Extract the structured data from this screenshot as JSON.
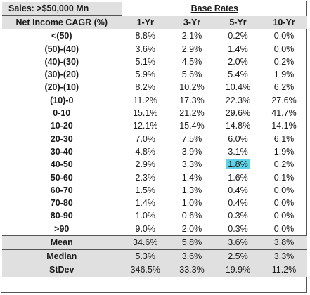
{
  "header": {
    "corner_label": "Sales: >$50,000 Mn",
    "base_rates_label": "Base Rates",
    "row_header": "Net Income CAGR (%)",
    "columns": [
      "1-Yr",
      "3-Yr",
      "5-Yr",
      "10-Yr"
    ]
  },
  "rows": [
    {
      "label": "<(50)",
      "values": [
        "8.8%",
        "2.1%",
        "0.2%",
        "0.0%"
      ]
    },
    {
      "label": "(50)-(40)",
      "values": [
        "3.6%",
        "2.9%",
        "1.4%",
        "0.0%"
      ]
    },
    {
      "label": "(40)-(30)",
      "values": [
        "5.1%",
        "4.5%",
        "2.0%",
        "0.2%"
      ]
    },
    {
      "label": "(30)-(20)",
      "values": [
        "5.9%",
        "5.6%",
        "5.4%",
        "1.9%"
      ]
    },
    {
      "label": "(20)-(10)",
      "values": [
        "8.2%",
        "10.2%",
        "10.4%",
        "6.2%"
      ]
    },
    {
      "label": "(10)-0",
      "values": [
        "11.2%",
        "17.3%",
        "22.3%",
        "27.6%"
      ]
    },
    {
      "label": "0-10",
      "values": [
        "15.1%",
        "21.2%",
        "29.6%",
        "41.7%"
      ]
    },
    {
      "label": "10-20",
      "values": [
        "12.1%",
        "15.4%",
        "14.8%",
        "14.1%"
      ]
    },
    {
      "label": "20-30",
      "values": [
        "7.0%",
        "7.5%",
        "6.0%",
        "6.1%"
      ]
    },
    {
      "label": "30-40",
      "values": [
        "4.8%",
        "3.9%",
        "3.1%",
        "1.9%"
      ]
    },
    {
      "label": "40-50",
      "values": [
        "2.9%",
        "3.3%",
        "1.8%",
        "0.2%"
      ]
    },
    {
      "label": "50-60",
      "values": [
        "2.3%",
        "1.4%",
        "1.6%",
        "0.1%"
      ]
    },
    {
      "label": "60-70",
      "values": [
        "1.5%",
        "1.3%",
        "0.4%",
        "0.0%"
      ]
    },
    {
      "label": "70-80",
      "values": [
        "1.4%",
        "1.0%",
        "0.4%",
        "0.0%"
      ]
    },
    {
      "label": "80-90",
      "values": [
        "1.0%",
        "0.6%",
        "0.3%",
        "0.0%"
      ]
    },
    {
      "label": ">90",
      "values": [
        "9.0%",
        "2.0%",
        "0.3%",
        "0.0%"
      ]
    }
  ],
  "stats": [
    {
      "label": "Mean",
      "values": [
        "34.6%",
        "5.8%",
        "3.6%",
        "3.8%"
      ]
    },
    {
      "label": "Median",
      "values": [
        "5.3%",
        "3.6%",
        "2.5%",
        "3.3%"
      ]
    },
    {
      "label": "StDev",
      "values": [
        "346.5%",
        "33.3%",
        "19.9%",
        "11.2%"
      ]
    }
  ],
  "highlight_color": "#5ed3e8"
}
